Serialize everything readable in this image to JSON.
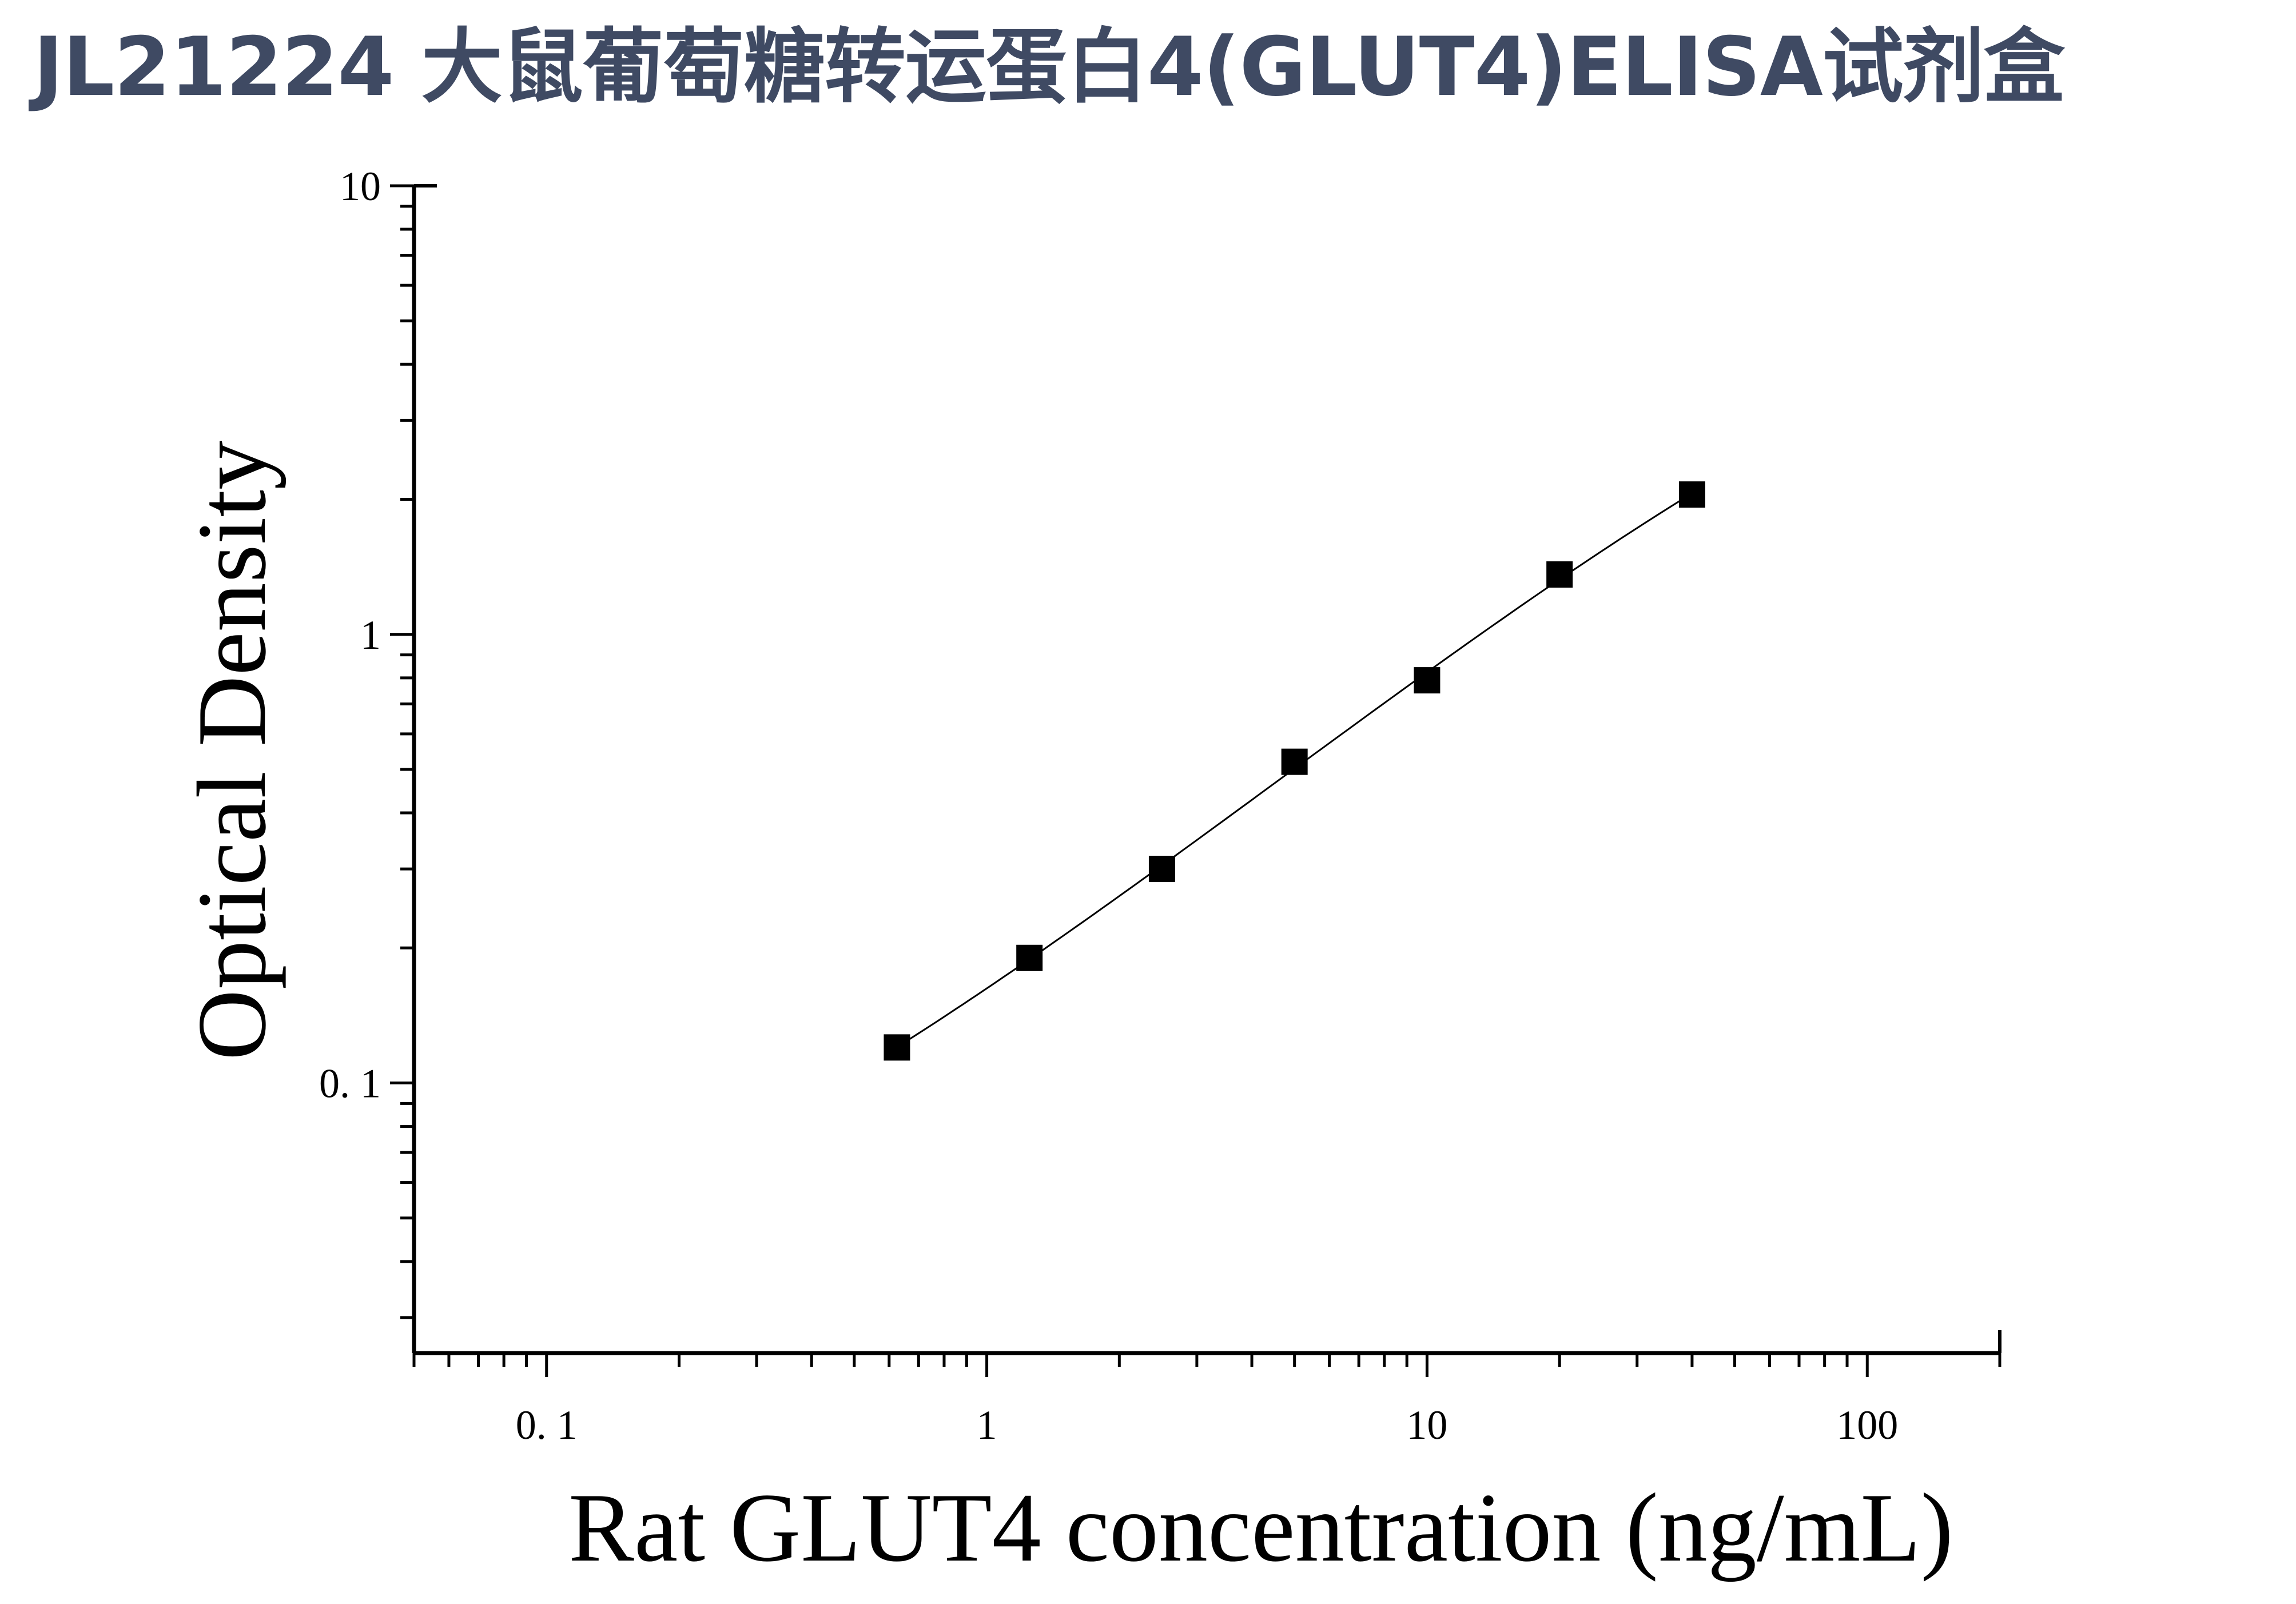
{
  "title": "JL21224 大鼠葡萄糖转运蛋白4(GLUT4)ELISA试剂盒",
  "colors": {
    "title": "#3f4a63",
    "axis": "#000000",
    "marker": "#000000",
    "curve": "#000000"
  },
  "chart_data": {
    "type": "scatter",
    "title": "JL21224 大鼠葡萄糖转运蛋白4(GLUT4)ELISA试剂盒",
    "xlabel": "Rat GLUT4 concentration (ng/mL)",
    "ylabel": "Optical Density",
    "xscale": "log",
    "yscale": "log",
    "xlim": [
      0.05,
      200
    ],
    "ylim": [
      0.025,
      10
    ],
    "x_ticks": [
      {
        "value": 0.1,
        "label": "0. 1"
      },
      {
        "value": 1,
        "label": "1"
      },
      {
        "value": 10,
        "label": "10"
      },
      {
        "value": 100,
        "label": "100"
      }
    ],
    "y_ticks": [
      {
        "value": 0.1,
        "label": "0. 1"
      },
      {
        "value": 1,
        "label": "1"
      },
      {
        "value": 10,
        "label": "10"
      }
    ],
    "grid": false,
    "marker": "square",
    "fit_line": true,
    "series": [
      {
        "x": [
          0.625,
          1.25,
          2.5,
          5,
          10,
          20,
          40
        ],
        "y": [
          0.12,
          0.19,
          0.3,
          0.52,
          0.79,
          1.36,
          2.05
        ]
      }
    ]
  }
}
